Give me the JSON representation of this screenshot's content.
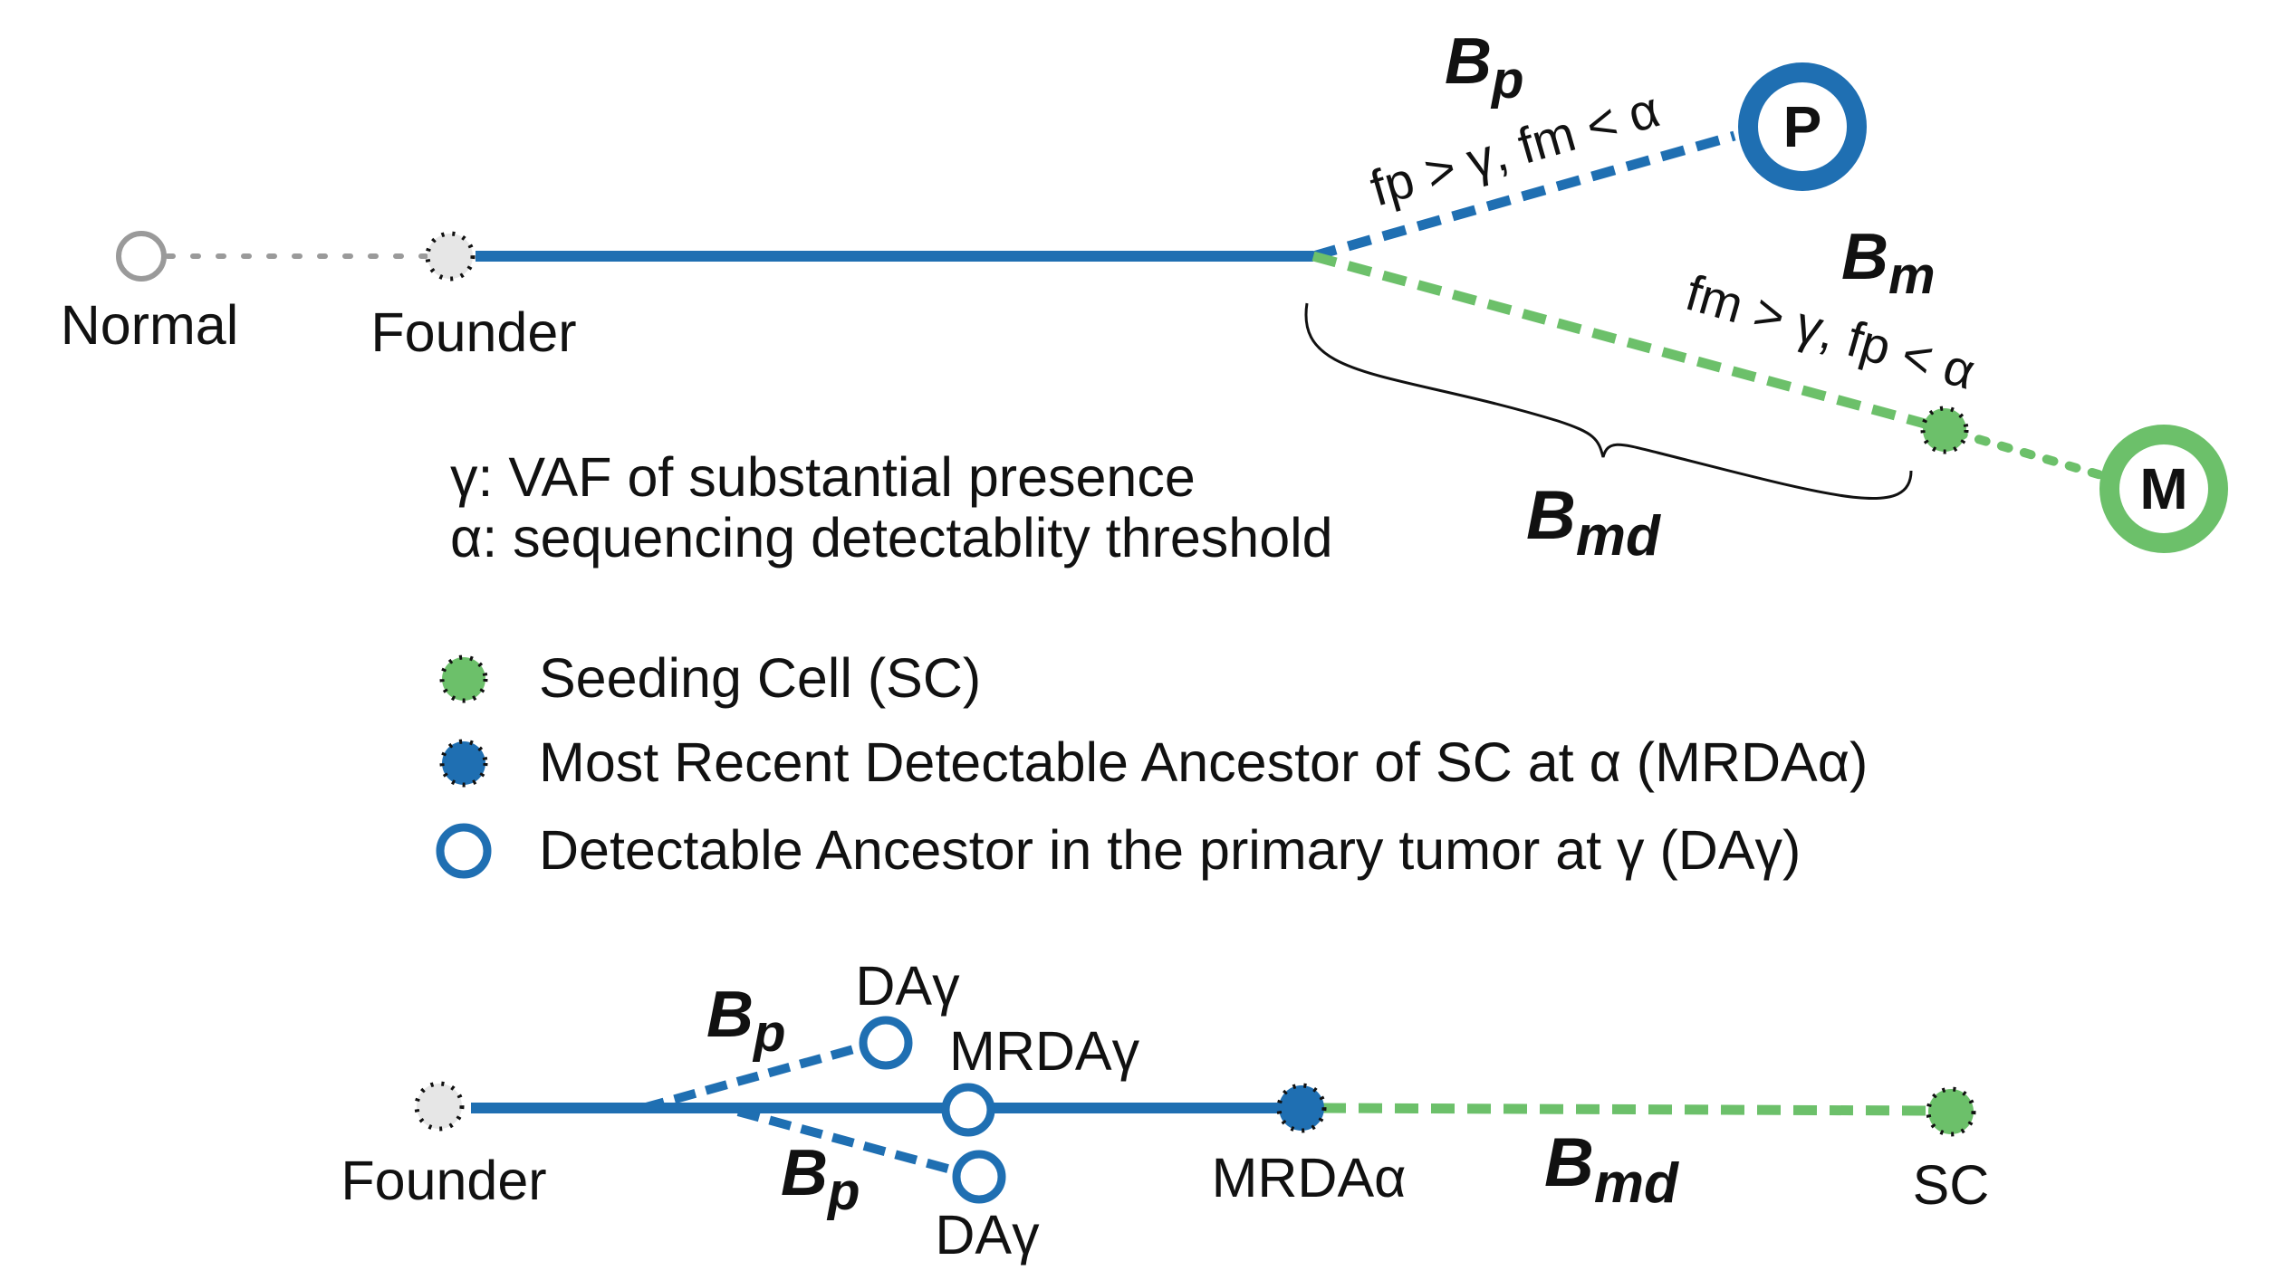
{
  "nodes": {
    "normal": "Normal",
    "founder_top": "Founder",
    "primary": "P",
    "metastasis": "M"
  },
  "branches": {
    "bp_main": "B",
    "bp_sub": "p",
    "bp_condition": "fp > γ, fm < α",
    "bm_main": "B",
    "bm_sub": "m",
    "bm_condition": "fm > γ, fp < α",
    "bmd_main": "B",
    "bmd_sub": "md"
  },
  "definitions": [
    "γ: VAF of substantial presence",
    "α: sequencing detectablity threshold"
  ],
  "legend": [
    {
      "icon": "seeding-cell-dot",
      "label": "Seeding Cell (SC)"
    },
    {
      "icon": "mrda-dot",
      "label": "Most Recent Detectable Ancestor of SC at α (MRDAα)"
    },
    {
      "icon": "detectable-ancestor-ring",
      "label": "Detectable Ancestor in the primary tumor at γ (DAγ)"
    }
  ],
  "bottom": {
    "founder": "Founder",
    "day_top": "DAγ",
    "mrday": "MRDAγ",
    "day_bottom": "DAγ",
    "mrda_alpha": "MRDAα",
    "sc": "SC",
    "bp_top_main": "B",
    "bp_top_sub": "p",
    "bp_bottom_main": "B",
    "bp_bottom_sub": "p",
    "bmd_main": "B",
    "bmd_sub": "md"
  },
  "colors": {
    "blue": "#1f6fb2",
    "green": "#6cc06a",
    "gray": "#999999",
    "light_gray": "#e6e6e6"
  }
}
